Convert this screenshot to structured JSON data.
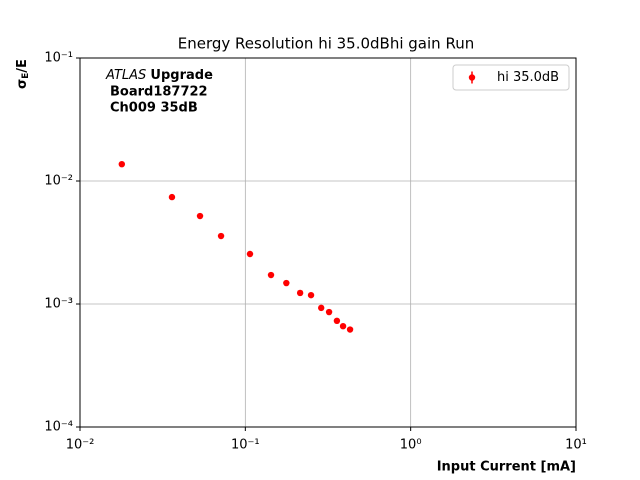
{
  "chart_data": {
    "type": "scatter",
    "title": "Energy Resolution hi 35.0dBhi gain Run",
    "xlabel": "Input Current [mA]",
    "ylabel": {
      "symbol": "σ",
      "subscript": "E",
      "rest": "/E"
    },
    "annotation": {
      "italic": "ATLAS",
      "bold": "Upgrade",
      "lines": [
        "Board187722",
        "Ch009 35dB"
      ]
    },
    "xscale": "log",
    "yscale": "log",
    "xlim": [
      0.01,
      10
    ],
    "ylim": [
      0.0001,
      0.1
    ],
    "xticks": [
      {
        "value": 0.01,
        "label": "10⁻²"
      },
      {
        "value": 0.1,
        "label": "10⁻¹"
      },
      {
        "value": 1,
        "label": "10⁰"
      },
      {
        "value": 10,
        "label": "10¹"
      }
    ],
    "yticks": [
      {
        "value": 0.0001,
        "label": "10⁻⁴"
      },
      {
        "value": 0.001,
        "label": "10⁻³"
      },
      {
        "value": 0.01,
        "label": "10⁻²"
      },
      {
        "value": 0.1,
        "label": "10⁻¹"
      }
    ],
    "grid": true,
    "legend": "upper right",
    "series": [
      {
        "name": "hi 35.0dB",
        "color": "#ff0000",
        "x": [
          0.0179,
          0.036,
          0.0532,
          0.0713,
          0.1067,
          0.143,
          0.177,
          0.2145,
          0.2497,
          0.2877,
          0.321,
          0.358,
          0.39,
          0.43
        ],
        "values": [
          0.0137,
          0.0074,
          0.00519,
          0.00357,
          0.00255,
          0.00172,
          0.00148,
          0.00123,
          0.00118,
          0.00093,
          0.00086,
          0.00073,
          0.00066,
          0.00062
        ]
      }
    ]
  }
}
